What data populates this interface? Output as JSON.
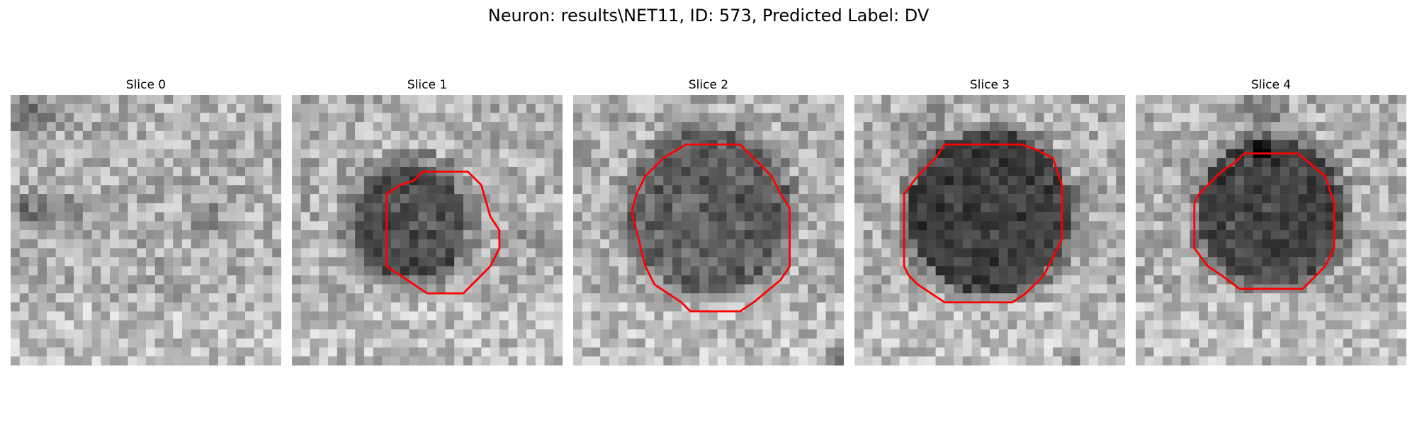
{
  "figure": {
    "title": "Neuron: results\\NET11, ID: 573, Predicted Label: DV"
  },
  "panels": [
    {
      "title": "Slice 0",
      "has_contour": false
    },
    {
      "title": "Slice 1",
      "has_contour": true
    },
    {
      "title": "Slice 2",
      "has_contour": true
    },
    {
      "title": "Slice 3",
      "has_contour": true
    },
    {
      "title": "Slice 4",
      "has_contour": true
    }
  ],
  "colors": {
    "background": "#ffffff",
    "contour": "#ff0000",
    "colormap": "gray"
  }
}
